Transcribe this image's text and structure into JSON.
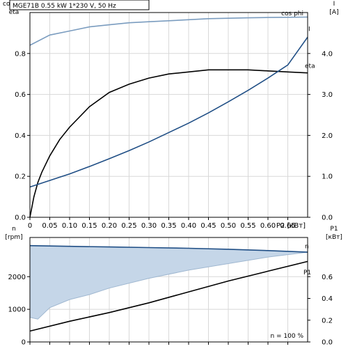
{
  "title_box": "MGE71B   0.55 kW   1*230 V, 50 Hz",
  "colors": {
    "cos_phi": "#7a9cbf",
    "eta": "#000000",
    "current": "#1f4e85",
    "speed": "#1f4e85",
    "p1": "#000000",
    "fill": "#c5d6e8",
    "grid": "#d8d8d8",
    "frame": "#000000"
  },
  "chart_data": [
    {
      "type": "line",
      "panel": "upper",
      "left_axis": {
        "label_lines": [
          "cos phi",
          "eta"
        ],
        "ylim": [
          0,
          1.0
        ],
        "ticks": [
          0,
          0.2,
          0.4,
          0.6,
          0.8
        ],
        "tick_labels": [
          "0.0",
          "0.2",
          "0.4",
          "0.6",
          "0.8"
        ]
      },
      "right_axis": {
        "label_lines": [
          "I",
          "[A]"
        ],
        "ylim": [
          0,
          5.0
        ],
        "ticks": [
          0,
          1,
          2,
          3,
          4
        ],
        "tick_labels": [
          "0.0",
          "1.0",
          "2.0",
          "3.0",
          "4.0"
        ]
      },
      "x_axis": {
        "xlim": [
          0,
          0.7
        ],
        "ticks": [
          0,
          0.05,
          0.1,
          0.15,
          0.2,
          0.25,
          0.3,
          0.35,
          0.4,
          0.45,
          0.5,
          0.55,
          0.6,
          0.65
        ],
        "tick_labels": [
          "0",
          "0.05",
          "0.10",
          "0.15",
          "0.20",
          "0.25",
          "0.30",
          "0.35",
          "0.40",
          "0.45",
          "0.50",
          "0.55",
          "0.60",
          "0.65"
        ],
        "label": "P2 [кВт]"
      },
      "grid": true,
      "series": [
        {
          "name": "cos phi",
          "axis": "left",
          "color_key": "cos_phi",
          "x": [
            0,
            0.05,
            0.1,
            0.15,
            0.2,
            0.25,
            0.3,
            0.35,
            0.4,
            0.45,
            0.5,
            0.55,
            0.6,
            0.65,
            0.7
          ],
          "y": [
            0.84,
            0.89,
            0.91,
            0.93,
            0.94,
            0.95,
            0.955,
            0.96,
            0.965,
            0.97,
            0.972,
            0.974,
            0.976,
            0.977,
            0.978
          ]
        },
        {
          "name": "eta",
          "axis": "left",
          "color_key": "eta",
          "x": [
            0,
            0.01,
            0.02,
            0.03,
            0.05,
            0.075,
            0.1,
            0.15,
            0.2,
            0.25,
            0.3,
            0.35,
            0.4,
            0.45,
            0.5,
            0.55,
            0.6,
            0.65,
            0.7
          ],
          "y": [
            0,
            0.1,
            0.17,
            0.22,
            0.3,
            0.38,
            0.44,
            0.54,
            0.61,
            0.65,
            0.68,
            0.7,
            0.71,
            0.72,
            0.72,
            0.72,
            0.715,
            0.71,
            0.705
          ]
        },
        {
          "name": "I",
          "axis": "right",
          "color_key": "current",
          "x": [
            0,
            0.05,
            0.1,
            0.15,
            0.2,
            0.25,
            0.3,
            0.35,
            0.4,
            0.45,
            0.5,
            0.55,
            0.6,
            0.65,
            0.7
          ],
          "y": [
            0.74,
            0.9,
            1.06,
            1.24,
            1.43,
            1.63,
            1.84,
            2.07,
            2.3,
            2.55,
            2.82,
            3.1,
            3.4,
            3.72,
            4.4
          ]
        }
      ]
    },
    {
      "type": "line",
      "panel": "lower",
      "left_axis": {
        "label_lines": [
          "n",
          "[rpm]"
        ],
        "ylim": [
          0,
          3200
        ],
        "ticks": [
          0,
          1000,
          2000
        ],
        "tick_labels": [
          "0",
          "1000",
          "2000"
        ]
      },
      "right_axis": {
        "label_lines": [
          "P1",
          "[кВт]"
        ],
        "ylim": [
          0,
          0.96
        ],
        "ticks": [
          0,
          0.2,
          0.4,
          0.6
        ],
        "tick_labels": [
          "0.0",
          "0.2",
          "0.4",
          "0.6"
        ]
      },
      "x_axis": {
        "xlim": [
          0,
          0.7
        ]
      },
      "grid": true,
      "annotation": "n = 100 %",
      "shaded_band": {
        "x": [
          0,
          0.02,
          0.05,
          0.1,
          0.15,
          0.2,
          0.3,
          0.4,
          0.5,
          0.6,
          0.7
        ],
        "y": [
          750,
          700,
          1050,
          1300,
          1450,
          1650,
          1950,
          2200,
          2400,
          2600,
          2750
        ]
      },
      "series": [
        {
          "name": "n",
          "axis": "left",
          "color_key": "speed",
          "x": [
            0,
            0.1,
            0.2,
            0.3,
            0.4,
            0.5,
            0.6,
            0.7
          ],
          "y": [
            2950,
            2930,
            2910,
            2890,
            2870,
            2840,
            2800,
            2750
          ]
        },
        {
          "name": "P1",
          "axis": "right",
          "color_key": "p1",
          "x": [
            0,
            0.1,
            0.2,
            0.3,
            0.4,
            0.5,
            0.6,
            0.7
          ],
          "y": [
            0.1,
            0.19,
            0.27,
            0.36,
            0.46,
            0.56,
            0.65,
            0.74
          ]
        }
      ]
    }
  ]
}
